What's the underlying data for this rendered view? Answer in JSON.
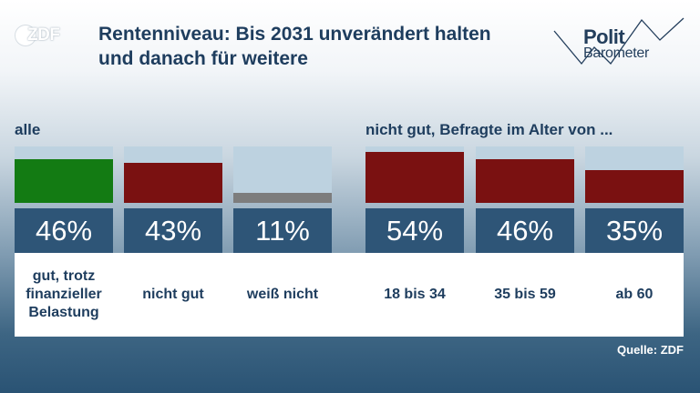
{
  "logo": {
    "text": "ZDF"
  },
  "title": "Rentenniveau: Bis 2031 unverändert halten und danach für weitere",
  "badge": {
    "line1": "Polit",
    "line2": "Barometer"
  },
  "chart_data": {
    "type": "bar",
    "groups": [
      {
        "label": "alle",
        "categories": [
          "gut, trotz finanzieller Belastung",
          "nicht gut",
          "weiß nicht"
        ],
        "values": [
          46,
          43,
          11
        ],
        "value_labels": [
          "46%",
          "43%",
          "11%"
        ],
        "colors": [
          "#137b13",
          "#7a1111",
          "#7d7d7d"
        ]
      },
      {
        "label": "nicht gut, Befragte im Alter von ...",
        "categories": [
          "18 bis 34",
          "35 bis 59",
          "ab 60"
        ],
        "values": [
          54,
          46,
          35
        ],
        "value_labels": [
          "54%",
          "46%",
          "35%"
        ],
        "colors": [
          "#7a1111",
          "#7a1111",
          "#7a1111"
        ]
      }
    ],
    "ylim": [
      0,
      60
    ]
  },
  "source": "Quelle: ZDF"
}
